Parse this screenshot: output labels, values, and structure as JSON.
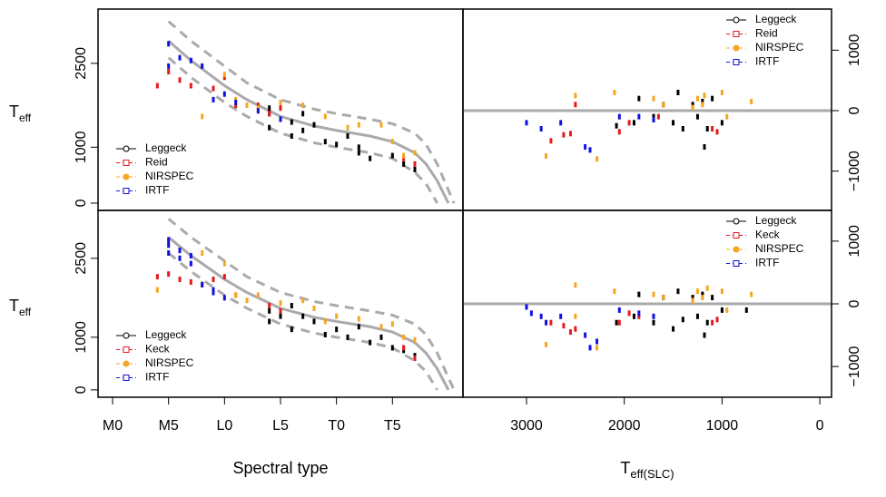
{
  "chart_data": [
    {
      "type": "scatter",
      "y_axis_side": "left",
      "legend": "bottom-left",
      "ylabel": "T",
      "ylabel_sub": "eff",
      "xlim": [
        -1.3,
        31.3
      ],
      "ylim": [
        -130,
        3470
      ],
      "yticks": [
        0,
        1000,
        2500
      ],
      "curve_color": "#aaaaaa",
      "curves": [
        {
          "style": "solid",
          "x": [
            5,
            7,
            10,
            12,
            15,
            18,
            20,
            23,
            25,
            27,
            28,
            29,
            30
          ],
          "values": [
            2900,
            2550,
            2100,
            1850,
            1550,
            1380,
            1300,
            1200,
            1100,
            900,
            700,
            400,
            0
          ]
        },
        {
          "style": "dashed",
          "x": [
            5,
            7,
            10,
            12,
            15,
            18,
            20,
            23,
            25,
            27,
            28,
            29,
            30.5
          ],
          "values": [
            3250,
            2900,
            2450,
            2150,
            1850,
            1680,
            1600,
            1500,
            1420,
            1250,
            1050,
            700,
            0
          ]
        },
        {
          "style": "dashed",
          "x": [
            5,
            7,
            10,
            12,
            15,
            18,
            20,
            23,
            25,
            27,
            28,
            29
          ],
          "values": [
            2600,
            2250,
            1800,
            1550,
            1250,
            1080,
            1000,
            900,
            800,
            550,
            350,
            0
          ]
        }
      ],
      "series": [
        {
          "name": "Leggeck",
          "color": "#000000",
          "x": [
            14,
            14,
            15,
            16,
            16,
            17,
            18,
            19,
            20,
            21,
            22,
            22,
            23,
            25,
            26,
            27,
            14,
            17
          ],
          "values": [
            1700,
            1600,
            1500,
            1450,
            1200,
            1600,
            1400,
            1100,
            1050,
            1200,
            900,
            1000,
            800,
            850,
            700,
            600,
            1350,
            1300
          ]
        },
        {
          "name": "Reid",
          "color": "#e41a1c",
          "x": [
            4,
            5,
            6,
            7,
            9,
            10,
            11,
            13,
            14,
            15,
            26,
            27
          ],
          "values": [
            2100,
            2350,
            2200,
            2100,
            2050,
            2250,
            1750,
            1750,
            1600,
            1700,
            800,
            700
          ]
        },
        {
          "name": "NIRSPEC",
          "color": "#f5a623",
          "x": [
            8,
            10,
            11,
            12,
            13,
            15,
            17,
            19,
            21,
            22,
            24,
            25,
            26,
            27
          ],
          "values": [
            1550,
            2300,
            1850,
            1750,
            1700,
            1800,
            1750,
            1550,
            1350,
            1400,
            1400,
            1100,
            850,
            900
          ]
        },
        {
          "name": "IRTF",
          "color": "#1010e0",
          "x": [
            5,
            5,
            6,
            7,
            8,
            9,
            10,
            11,
            13,
            15
          ],
          "values": [
            2850,
            2450,
            2600,
            2550,
            2450,
            1850,
            1950,
            1800,
            1650,
            1500
          ]
        }
      ]
    },
    {
      "type": "scatter",
      "y_axis_side": "right",
      "legend": "top-right",
      "xlim": [
        3650,
        -120
      ],
      "ylim": [
        -1650,
        1680
      ],
      "yticks": [
        {
          "value": -1000,
          "label": "−1000"
        },
        0,
        1000
      ],
      "hline": 0,
      "curve_color": "#aaaaaa",
      "series": [
        {
          "name": "Leggeck",
          "color": "#000000",
          "x": [
            2080,
            1900,
            1850,
            1700,
            1600,
            1500,
            1450,
            1400,
            1300,
            1250,
            1200,
            1180,
            1150,
            1100,
            1000
          ],
          "values": [
            -250,
            -200,
            200,
            -100,
            100,
            -200,
            300,
            -300,
            100,
            -100,
            150,
            -600,
            -300,
            200,
            -200
          ]
        },
        {
          "name": "Reid",
          "color": "#e41a1c",
          "x": [
            2750,
            2620,
            2550,
            2500,
            2050,
            1950,
            1650,
            1100,
            1050
          ],
          "values": [
            -500,
            -400,
            -380,
            100,
            -350,
            -200,
            -100,
            -300,
            -350
          ]
        },
        {
          "name": "NIRSPEC",
          "color": "#f5a623",
          "x": [
            2800,
            2500,
            2280,
            2100,
            1700,
            1600,
            1300,
            1250,
            1200,
            1180,
            1000,
            950,
            700
          ],
          "values": [
            -750,
            250,
            -800,
            300,
            200,
            100,
            50,
            200,
            100,
            250,
            300,
            -100,
            150
          ]
        },
        {
          "name": "IRTF",
          "color": "#1010e0",
          "x": [
            3000,
            2850,
            2650,
            2400,
            2350,
            2050,
            1850,
            1700
          ],
          "values": [
            -200,
            -300,
            -200,
            -600,
            -650,
            -100,
            -100,
            -150
          ]
        }
      ]
    },
    {
      "type": "scatter",
      "y_axis_side": "left",
      "legend": "bottom-left",
      "ylabel": "T",
      "ylabel_sub": "eff",
      "xlabel": "Spectral type",
      "xlim": [
        -1.3,
        31.3
      ],
      "ylim": [
        -140,
        3410
      ],
      "yticks": [
        0,
        1000,
        2500
      ],
      "curve_color": "#aaaaaa",
      "xticks": [
        {
          "value": 0,
          "label": "M0"
        },
        {
          "value": 5,
          "label": "M5"
        },
        {
          "value": 10,
          "label": "L0"
        },
        {
          "value": 15,
          "label": "L5"
        },
        {
          "value": 20,
          "label": "T0"
        },
        {
          "value": 25,
          "label": "T5"
        }
      ],
      "curves": [
        {
          "style": "solid",
          "x": [
            5,
            7,
            10,
            12,
            15,
            18,
            20,
            23,
            25,
            27,
            28,
            29,
            30
          ],
          "values": [
            2900,
            2550,
            2100,
            1850,
            1550,
            1380,
            1300,
            1200,
            1100,
            900,
            700,
            400,
            0
          ]
        },
        {
          "style": "dashed",
          "x": [
            5,
            7,
            10,
            12,
            15,
            18,
            20,
            23,
            25,
            27,
            28,
            29,
            30.5
          ],
          "values": [
            3250,
            2900,
            2450,
            2150,
            1850,
            1680,
            1600,
            1500,
            1420,
            1250,
            1050,
            700,
            0
          ]
        },
        {
          "style": "dashed",
          "x": [
            5,
            7,
            10,
            12,
            15,
            18,
            20,
            23,
            25,
            27,
            28,
            29
          ],
          "values": [
            2600,
            2250,
            1800,
            1550,
            1250,
            1080,
            1000,
            900,
            800,
            550,
            350,
            0
          ]
        }
      ],
      "series": [
        {
          "name": "Leggeck",
          "color": "#000000",
          "x": [
            14,
            14,
            15,
            16,
            16,
            17,
            18,
            19,
            20,
            21,
            22,
            23,
            24,
            25,
            26,
            27
          ],
          "values": [
            1500,
            1300,
            1400,
            1150,
            1600,
            1400,
            1300,
            1050,
            1150,
            1000,
            1200,
            900,
            1000,
            800,
            750,
            650
          ]
        },
        {
          "name": "Keck",
          "color": "#e41a1c",
          "x": [
            4,
            5,
            6,
            7,
            8,
            9,
            10,
            11,
            14,
            15,
            26,
            27
          ],
          "values": [
            2150,
            2200,
            2100,
            2050,
            2000,
            2100,
            2150,
            1800,
            1600,
            1500,
            800,
            600
          ]
        },
        {
          "name": "NIRSPEC",
          "color": "#f5a623",
          "x": [
            4,
            8,
            10,
            11,
            12,
            13,
            15,
            17,
            18,
            19,
            20,
            22,
            24,
            25,
            26,
            27
          ],
          "values": [
            1900,
            2600,
            2400,
            1800,
            1700,
            1800,
            1650,
            1700,
            1550,
            1300,
            1400,
            1350,
            1200,
            1250,
            1000,
            950
          ]
        },
        {
          "name": "IRTF",
          "color": "#1010e0",
          "x": [
            5,
            5,
            5,
            6,
            6,
            7,
            7,
            8,
            9,
            9,
            10
          ],
          "values": [
            2850,
            2750,
            2600,
            2650,
            2500,
            2550,
            2400,
            2000,
            1900,
            1850,
            1750
          ]
        }
      ]
    },
    {
      "type": "scatter",
      "y_axis_side": "right",
      "legend": "top-right",
      "xlabel": "T",
      "xlabel_sub": "eff(SLC)",
      "xlim": [
        3650,
        -120
      ],
      "ylim": [
        -1490,
        1490
      ],
      "yticks": [
        {
          "value": -1000,
          "label": "−1000"
        },
        0,
        1000
      ],
      "xticks": [
        3000,
        2000,
        1000,
        0
      ],
      "hline": 0,
      "curve_color": "#aaaaaa",
      "series": [
        {
          "name": "Leggeck",
          "color": "#000000",
          "x": [
            2080,
            1900,
            1850,
            1700,
            1600,
            1500,
            1450,
            1400,
            1300,
            1250,
            1200,
            1180,
            1150,
            1100,
            1000,
            750
          ],
          "values": [
            -300,
            -200,
            150,
            -300,
            100,
            -400,
            200,
            -250,
            100,
            -200,
            150,
            -500,
            -300,
            100,
            -100,
            -100
          ]
        },
        {
          "name": "Keck",
          "color": "#e41a1c",
          "x": [
            2750,
            2620,
            2550,
            2500,
            2050,
            1950,
            1850,
            1100,
            1050
          ],
          "values": [
            -300,
            -350,
            -450,
            -400,
            -300,
            -150,
            -200,
            -300,
            -250
          ]
        },
        {
          "name": "NIRSPEC",
          "color": "#f5a623",
          "x": [
            2800,
            2500,
            2500,
            2280,
            2100,
            1700,
            1600,
            1300,
            1250,
            1200,
            1150,
            1000,
            950,
            700
          ],
          "values": [
            -650,
            300,
            -200,
            -700,
            200,
            150,
            100,
            50,
            200,
            100,
            250,
            200,
            -100,
            150
          ]
        },
        {
          "name": "IRTF",
          "color": "#1010e0",
          "x": [
            3000,
            2950,
            2850,
            2800,
            2650,
            2400,
            2350,
            2280,
            2050,
            1850,
            1700
          ],
          "values": [
            -50,
            -150,
            -200,
            -300,
            -200,
            -500,
            -700,
            -600,
            -100,
            -150,
            -200
          ]
        }
      ]
    }
  ]
}
